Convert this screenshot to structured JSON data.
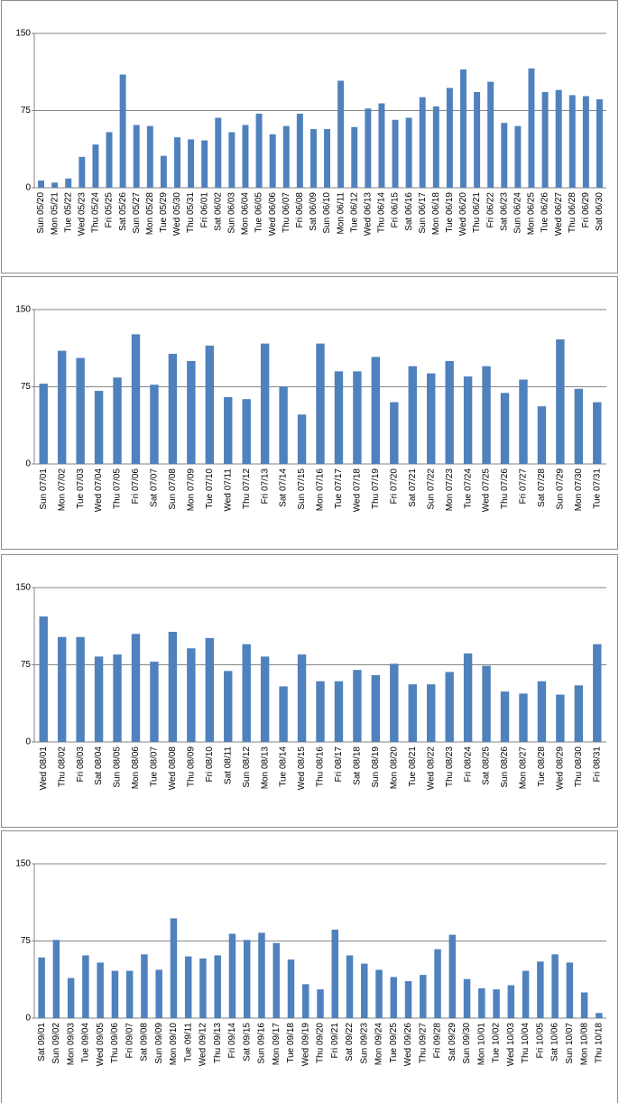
{
  "chart_data": [
    {
      "type": "bar",
      "color": "#4f81bd",
      "ylim": [
        0,
        150
      ],
      "yticks": [
        0,
        75,
        150
      ],
      "grid": true,
      "categories": [
        "Sun 05/20",
        "Mon 05/21",
        "Tue 05/22",
        "Wed 05/23",
        "Thu 05/24",
        "Fri 05/25",
        "Sat 05/26",
        "Sun 05/27",
        "Mon 05/28",
        "Tue 05/29",
        "Wed 05/30",
        "Thu 05/31",
        "Fri 06/01",
        "Sat 06/02",
        "Sun 06/03",
        "Mon 06/04",
        "Tue 06/05",
        "Wed 06/06",
        "Thu 06/07",
        "Fri 06/08",
        "Sat 06/09",
        "Sun 06/10",
        "Mon 06/11",
        "Tue 06/12",
        "Wed 06/13",
        "Thu 06/14",
        "Fri 06/15",
        "Sat 06/16",
        "Sun 06/17",
        "Mon 06/18",
        "Tue 06/19",
        "Wed 06/20",
        "Thu 06/21",
        "Fri 06/22",
        "Sat 06/23",
        "Sun 06/24",
        "Mon 06/25",
        "Tue 06/26",
        "Wed 06/27",
        "Thu 06/28",
        "Fri 06/29",
        "Sat 06/30"
      ],
      "values": [
        7,
        5,
        9,
        30,
        42,
        54,
        110,
        61,
        60,
        31,
        49,
        47,
        46,
        68,
        54,
        61,
        72,
        52,
        60,
        72,
        57,
        57,
        104,
        59,
        77,
        82,
        66,
        68,
        88,
        79,
        97,
        115,
        93,
        103,
        63,
        60,
        116,
        93,
        95,
        90,
        89,
        86
      ]
    },
    {
      "type": "bar",
      "color": "#4f81bd",
      "ylim": [
        0,
        150
      ],
      "yticks": [
        0,
        75,
        150
      ],
      "grid": true,
      "categories": [
        "Sun 07/01",
        "Mon 07/02",
        "Tue 07/03",
        "Wed 07/04",
        "Thu 07/05",
        "Fri 07/06",
        "Sat 07/07",
        "Sun 07/08",
        "Mon 07/09",
        "Tue 07/10",
        "Wed 07/11",
        "Thu 07/12",
        "Fri 07/13",
        "Sat 07/14",
        "Sun 07/15",
        "Mon 07/16",
        "Tue 07/17",
        "Wed 07/18",
        "Thu 07/19",
        "Fri 07/20",
        "Sat 07/21",
        "Sun 07/22",
        "Mon 07/23",
        "Tue 07/24",
        "Wed 07/25",
        "Thu 07/26",
        "Fri 07/27",
        "Sat 07/28",
        "Sun 07/29",
        "Mon 07/30",
        "Tue 07/31"
      ],
      "values": [
        78,
        110,
        103,
        71,
        84,
        126,
        77,
        107,
        100,
        115,
        65,
        63,
        117,
        75,
        48,
        117,
        90,
        90,
        104,
        60,
        95,
        88,
        100,
        85,
        95,
        69,
        82,
        56,
        121,
        73,
        60
      ]
    },
    {
      "type": "bar",
      "color": "#4f81bd",
      "ylim": [
        0,
        150
      ],
      "yticks": [
        0,
        75,
        150
      ],
      "grid": true,
      "categories": [
        "Wed 08/01",
        "Thu 08/02",
        "Fri 08/03",
        "Sat 08/04",
        "Sun 08/05",
        "Mon 08/06",
        "Tue 08/07",
        "Wed 08/08",
        "Thu 08/09",
        "Fri 08/10",
        "Sat 08/11",
        "Sun 08/12",
        "Mon 08/13",
        "Tue 08/14",
        "Wed 08/15",
        "Thu 08/16",
        "Fri 08/17",
        "Sat 08/18",
        "Sun 08/19",
        "Mon 08/20",
        "Tue 08/21",
        "Wed 08/22",
        "Thu 08/23",
        "Fri 08/24",
        "Sat 08/25",
        "Sun 08/26",
        "Mon 08/27",
        "Tue 08/28",
        "Wed 08/29",
        "Thu 08/30",
        "Fri 08/31"
      ],
      "values": [
        122,
        102,
        102,
        83,
        85,
        105,
        78,
        107,
        91,
        101,
        69,
        95,
        83,
        54,
        85,
        59,
        59,
        70,
        65,
        76,
        56,
        56,
        68,
        86,
        74,
        49,
        47,
        59,
        46,
        55,
        95
      ]
    },
    {
      "type": "bar",
      "color": "#4f81bd",
      "ylim": [
        0,
        150
      ],
      "yticks": [
        0,
        75,
        150
      ],
      "grid": true,
      "categories": [
        "Sat 09/01",
        "Sun 09/02",
        "Mon 09/03",
        "Tue 09/04",
        "Wed 09/05",
        "Thu 09/06",
        "Fri 09/07",
        "Sat 09/08",
        "Sun 09/09",
        "Mon 09/10",
        "Tue 09/11",
        "Wed 09/12",
        "Thu 09/13",
        "Fri 09/14",
        "Sat 09/15",
        "Sun 09/16",
        "Mon 09/17",
        "Tue 09/18",
        "Wed 09/19",
        "Thu 09/20",
        "Fri 09/21",
        "Sat 09/22",
        "Sun 09/23",
        "Mon 09/24",
        "Tue 09/25",
        "Wed 09/26",
        "Thu 09/27",
        "Fri 09/28",
        "Sat 09/29",
        "Sun 09/30",
        "Mon 10/01",
        "Tue 10/02",
        "Wed 10/03",
        "Thu 10/04",
        "Fri 10/05",
        "Sat 10/06",
        "Sun 10/07",
        "Mon 10/08",
        "Thu 10/18"
      ],
      "values": [
        59,
        76,
        39,
        61,
        54,
        46,
        46,
        62,
        47,
        97,
        60,
        58,
        61,
        82,
        76,
        83,
        73,
        57,
        33,
        28,
        86,
        61,
        53,
        47,
        40,
        36,
        42,
        67,
        81,
        38,
        29,
        28,
        32,
        46,
        55,
        62,
        54,
        25,
        5
      ]
    }
  ]
}
